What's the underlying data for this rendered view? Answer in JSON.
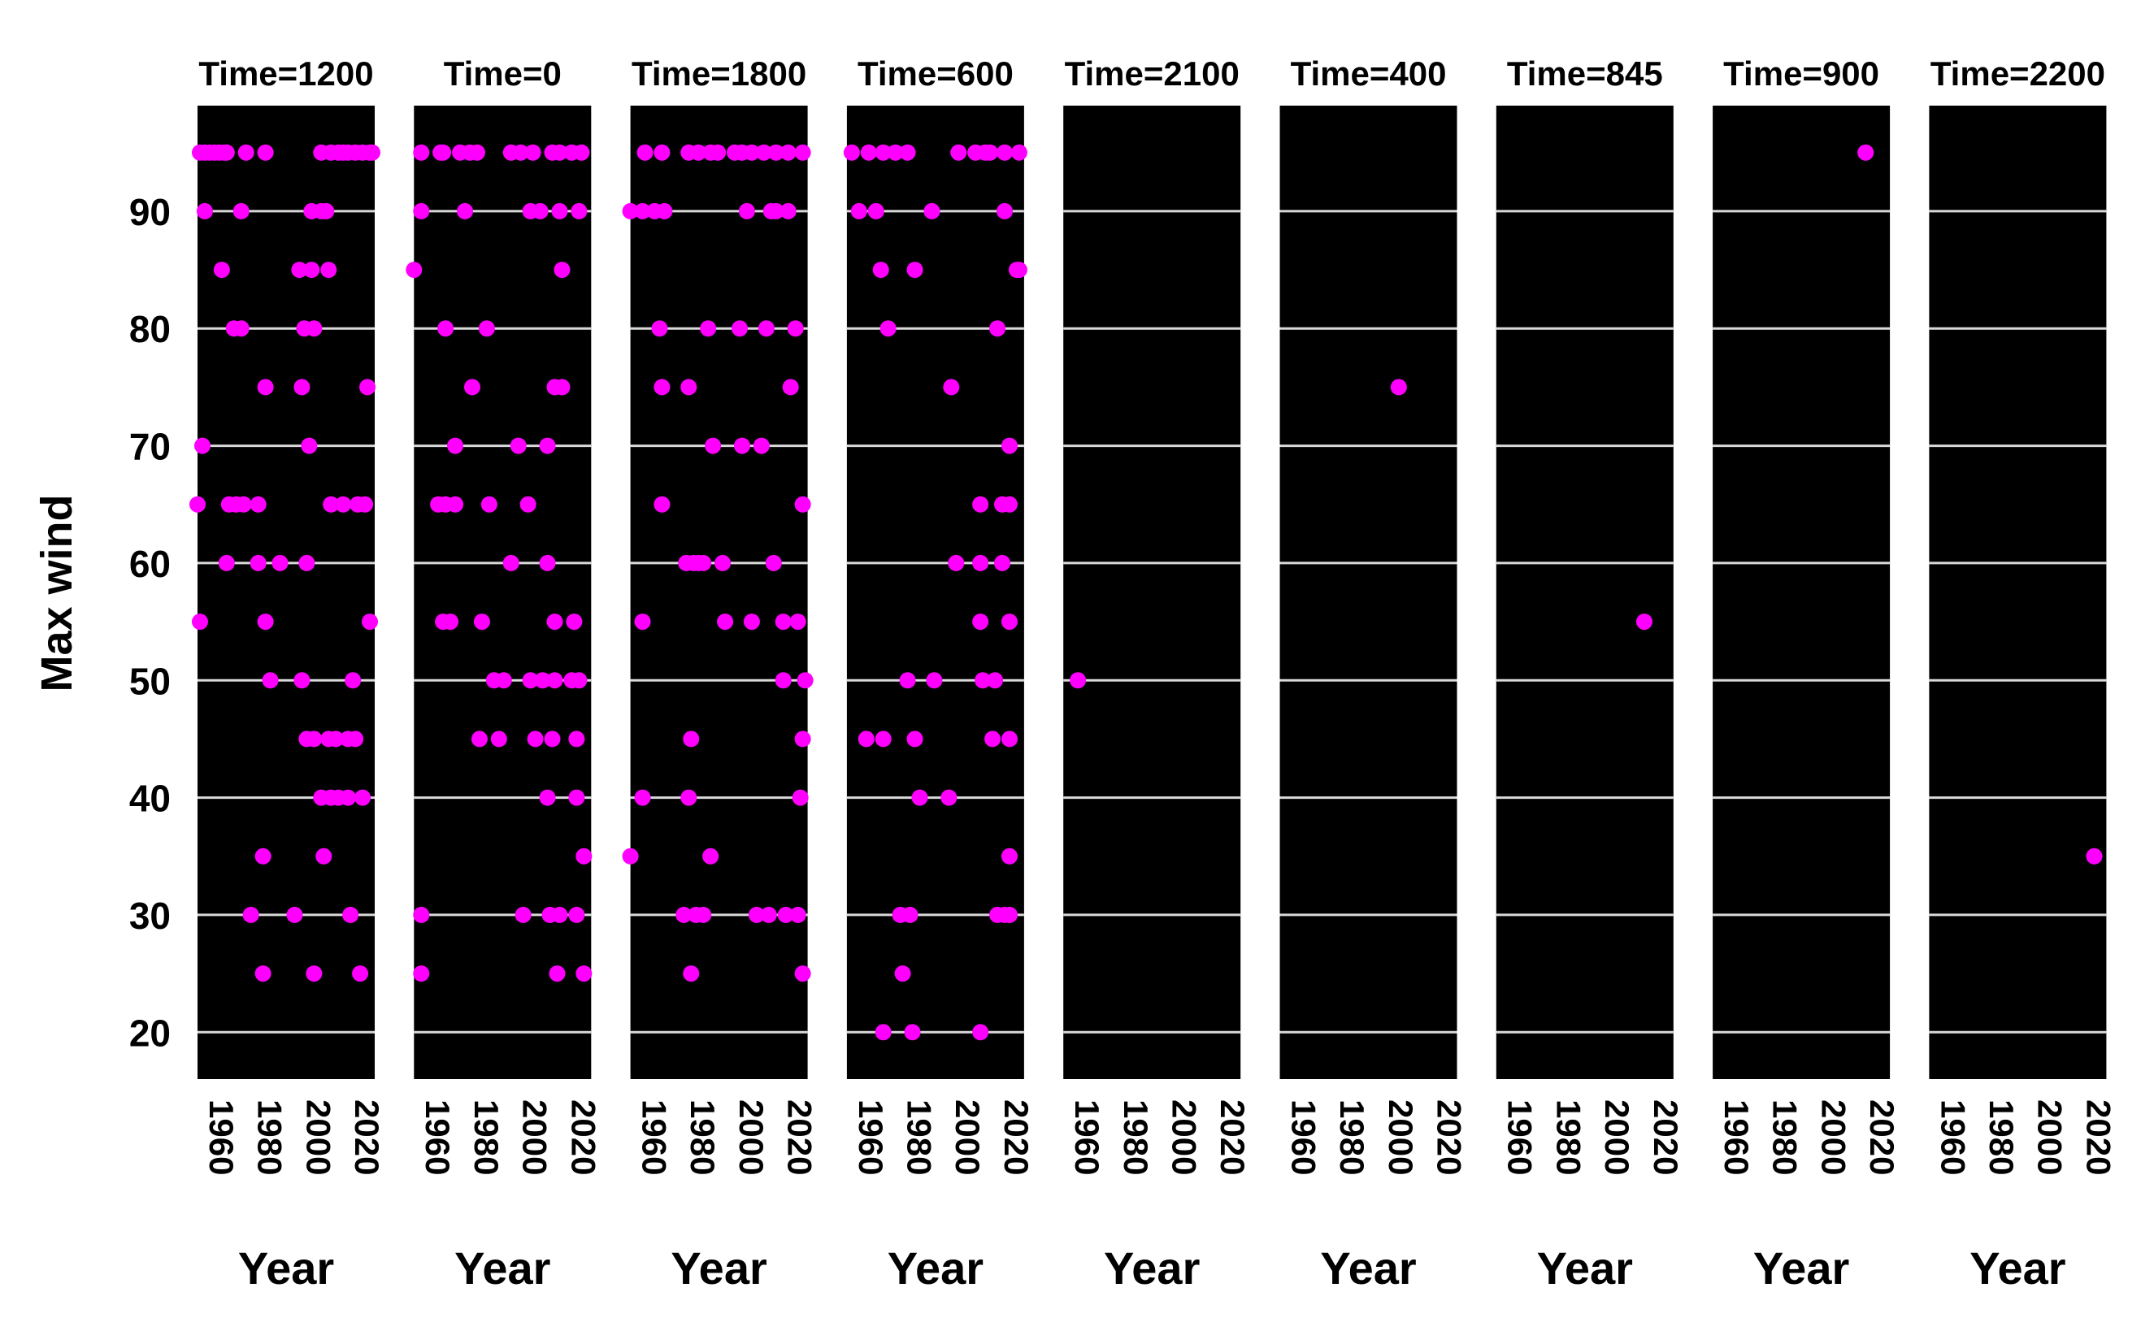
{
  "chart_data": {
    "type": "scatter",
    "facet_by": "Time",
    "xlabel": "Year",
    "ylabel": "Max wind",
    "xticks": [
      1960,
      1980,
      2000,
      2020
    ],
    "yticks": [
      20,
      30,
      40,
      50,
      60,
      70,
      80,
      90
    ],
    "xlim": [
      1950,
      2023
    ],
    "ylim": [
      16,
      99
    ],
    "grid": true,
    "colors": {
      "panel_bg": "#000000",
      "grid": "#d9d9d9",
      "point": "#ff00ff"
    },
    "panels": [
      {
        "title": "Time=1200",
        "points": [
          [
            1951,
            95
          ],
          [
            1953,
            95
          ],
          [
            1955,
            95
          ],
          [
            1957,
            95
          ],
          [
            1959,
            95
          ],
          [
            1961,
            95
          ],
          [
            1962,
            95
          ],
          [
            1970,
            95
          ],
          [
            1978,
            95
          ],
          [
            2001,
            95
          ],
          [
            2005,
            95
          ],
          [
            2008,
            95
          ],
          [
            2010,
            95
          ],
          [
            2012,
            95
          ],
          [
            2015,
            95
          ],
          [
            2018,
            95
          ],
          [
            2021,
            95
          ],
          [
            2022,
            95
          ],
          [
            1953,
            90
          ],
          [
            1968,
            90
          ],
          [
            1997,
            90
          ],
          [
            2001,
            90
          ],
          [
            2003,
            90
          ],
          [
            1960,
            85
          ],
          [
            1992,
            85
          ],
          [
            1997,
            85
          ],
          [
            2004,
            85
          ],
          [
            1965,
            80
          ],
          [
            1968,
            80
          ],
          [
            1994,
            80
          ],
          [
            1998,
            80
          ],
          [
            1978,
            75
          ],
          [
            1993,
            75
          ],
          [
            2020,
            75
          ],
          [
            1952,
            70
          ],
          [
            1996,
            70
          ],
          [
            1950,
            65
          ],
          [
            1963,
            65
          ],
          [
            1966,
            65
          ],
          [
            1969,
            65
          ],
          [
            1975,
            65
          ],
          [
            2005,
            65
          ],
          [
            2010,
            65
          ],
          [
            2016,
            65
          ],
          [
            2019,
            65
          ],
          [
            1962,
            60
          ],
          [
            1975,
            60
          ],
          [
            1984,
            60
          ],
          [
            1995,
            60
          ],
          [
            1951,
            55
          ],
          [
            1978,
            55
          ],
          [
            2021,
            55
          ],
          [
            1980,
            50
          ],
          [
            1993,
            50
          ],
          [
            2014,
            50
          ],
          [
            1995,
            45
          ],
          [
            1998,
            45
          ],
          [
            2004,
            45
          ],
          [
            2007,
            45
          ],
          [
            2012,
            45
          ],
          [
            2015,
            45
          ],
          [
            2001,
            40
          ],
          [
            2005,
            40
          ],
          [
            2008,
            40
          ],
          [
            2012,
            40
          ],
          [
            2018,
            40
          ],
          [
            1977,
            35
          ],
          [
            2002,
            35
          ],
          [
            1972,
            30
          ],
          [
            1990,
            30
          ],
          [
            2013,
            30
          ],
          [
            1977,
            25
          ],
          [
            1998,
            25
          ],
          [
            2017,
            25
          ]
        ]
      },
      {
        "title": "Time=0",
        "points": [
          [
            1953,
            95
          ],
          [
            1961,
            95
          ],
          [
            1962,
            95
          ],
          [
            1969,
            95
          ],
          [
            1973,
            95
          ],
          [
            1976,
            95
          ],
          [
            1990,
            95
          ],
          [
            1994,
            95
          ],
          [
            1999,
            95
          ],
          [
            2007,
            95
          ],
          [
            2010,
            95
          ],
          [
            2015,
            95
          ],
          [
            2019,
            95
          ],
          [
            1953,
            90
          ],
          [
            1971,
            90
          ],
          [
            1998,
            90
          ],
          [
            2002,
            90
          ],
          [
            2010,
            90
          ],
          [
            2018,
            90
          ],
          [
            1950,
            85
          ],
          [
            2011,
            85
          ],
          [
            1963,
            80
          ],
          [
            1980,
            80
          ],
          [
            1974,
            75
          ],
          [
            2008,
            75
          ],
          [
            2011,
            75
          ],
          [
            1967,
            70
          ],
          [
            1993,
            70
          ],
          [
            2005,
            70
          ],
          [
            1960,
            65
          ],
          [
            1963,
            65
          ],
          [
            1967,
            65
          ],
          [
            1981,
            65
          ],
          [
            1997,
            65
          ],
          [
            1990,
            60
          ],
          [
            2005,
            60
          ],
          [
            1962,
            55
          ],
          [
            1965,
            55
          ],
          [
            1978,
            55
          ],
          [
            2008,
            55
          ],
          [
            2016,
            55
          ],
          [
            1983,
            50
          ],
          [
            1987,
            50
          ],
          [
            1998,
            50
          ],
          [
            2003,
            50
          ],
          [
            2008,
            50
          ],
          [
            2015,
            50
          ],
          [
            2018,
            50
          ],
          [
            1977,
            45
          ],
          [
            1985,
            45
          ],
          [
            2000,
            45
          ],
          [
            2007,
            45
          ],
          [
            2017,
            45
          ],
          [
            2005,
            40
          ],
          [
            2017,
            40
          ],
          [
            2020,
            35
          ],
          [
            1953,
            30
          ],
          [
            1995,
            30
          ],
          [
            2006,
            30
          ],
          [
            2010,
            30
          ],
          [
            2017,
            30
          ],
          [
            1953,
            25
          ],
          [
            2009,
            25
          ],
          [
            2020,
            25
          ]
        ]
      },
      {
        "title": "Time=1800",
        "points": [
          [
            1956,
            95
          ],
          [
            1963,
            95
          ],
          [
            1974,
            95
          ],
          [
            1978,
            95
          ],
          [
            1983,
            95
          ],
          [
            1986,
            95
          ],
          [
            1993,
            95
          ],
          [
            1996,
            95
          ],
          [
            2000,
            95
          ],
          [
            2005,
            95
          ],
          [
            2010,
            95
          ],
          [
            2015,
            95
          ],
          [
            2021,
            95
          ],
          [
            1950,
            90
          ],
          [
            1955,
            90
          ],
          [
            1960,
            90
          ],
          [
            1964,
            90
          ],
          [
            1998,
            90
          ],
          [
            2008,
            90
          ],
          [
            2010,
            90
          ],
          [
            2015,
            90
          ],
          [
            1962,
            80
          ],
          [
            1982,
            80
          ],
          [
            1995,
            80
          ],
          [
            2006,
            80
          ],
          [
            2018,
            80
          ],
          [
            1963,
            75
          ],
          [
            1974,
            75
          ],
          [
            2016,
            75
          ],
          [
            1984,
            70
          ],
          [
            1996,
            70
          ],
          [
            2004,
            70
          ],
          [
            1963,
            65
          ],
          [
            2021,
            65
          ],
          [
            1973,
            60
          ],
          [
            1976,
            60
          ],
          [
            1978,
            60
          ],
          [
            1980,
            60
          ],
          [
            1988,
            60
          ],
          [
            2009,
            60
          ],
          [
            1955,
            55
          ],
          [
            1989,
            55
          ],
          [
            2000,
            55
          ],
          [
            2013,
            55
          ],
          [
            2019,
            55
          ],
          [
            2013,
            50
          ],
          [
            2022,
            50
          ],
          [
            1975,
            45
          ],
          [
            2021,
            45
          ],
          [
            1955,
            40
          ],
          [
            1974,
            40
          ],
          [
            2020,
            40
          ],
          [
            1950,
            35
          ],
          [
            1983,
            35
          ],
          [
            1972,
            30
          ],
          [
            1977,
            30
          ],
          [
            1980,
            30
          ],
          [
            2002,
            30
          ],
          [
            2007,
            30
          ],
          [
            2014,
            30
          ],
          [
            2019,
            30
          ],
          [
            1975,
            25
          ],
          [
            2021,
            25
          ]
        ]
      },
      {
        "title": "Time=600",
        "points": [
          [
            1952,
            95
          ],
          [
            1959,
            95
          ],
          [
            1965,
            95
          ],
          [
            1970,
            95
          ],
          [
            1975,
            95
          ],
          [
            1996,
            95
          ],
          [
            2003,
            95
          ],
          [
            2007,
            95
          ],
          [
            2009,
            95
          ],
          [
            2015,
            95
          ],
          [
            2021,
            95
          ],
          [
            1955,
            90
          ],
          [
            1962,
            90
          ],
          [
            1985,
            90
          ],
          [
            2015,
            90
          ],
          [
            1964,
            85
          ],
          [
            1978,
            85
          ],
          [
            2020,
            85
          ],
          [
            2021,
            85
          ],
          [
            1967,
            80
          ],
          [
            2012,
            80
          ],
          [
            1993,
            75
          ],
          [
            2017,
            70
          ],
          [
            2005,
            65
          ],
          [
            2014,
            65
          ],
          [
            2017,
            65
          ],
          [
            1995,
            60
          ],
          [
            2005,
            60
          ],
          [
            2014,
            60
          ],
          [
            2005,
            55
          ],
          [
            2017,
            55
          ],
          [
            1975,
            50
          ],
          [
            1986,
            50
          ],
          [
            2006,
            50
          ],
          [
            2011,
            50
          ],
          [
            1958,
            45
          ],
          [
            1965,
            45
          ],
          [
            1978,
            45
          ],
          [
            2010,
            45
          ],
          [
            2017,
            45
          ],
          [
            1980,
            40
          ],
          [
            1992,
            40
          ],
          [
            2017,
            35
          ],
          [
            1972,
            30
          ],
          [
            1976,
            30
          ],
          [
            2012,
            30
          ],
          [
            2015,
            30
          ],
          [
            2017,
            30
          ],
          [
            1973,
            25
          ],
          [
            1965,
            20
          ],
          [
            1977,
            20
          ],
          [
            2005,
            20
          ]
        ]
      },
      {
        "title": "Time=2100",
        "points": [
          [
            1956,
            50
          ]
        ]
      },
      {
        "title": "Time=400",
        "points": [
          [
            1999,
            75
          ]
        ]
      },
      {
        "title": "Time=845",
        "points": [
          [
            2011,
            55
          ]
        ]
      },
      {
        "title": "Time=900",
        "points": [
          [
            2013,
            95
          ]
        ]
      },
      {
        "title": "Time=2200",
        "points": [
          [
            2018,
            35
          ]
        ]
      }
    ]
  }
}
